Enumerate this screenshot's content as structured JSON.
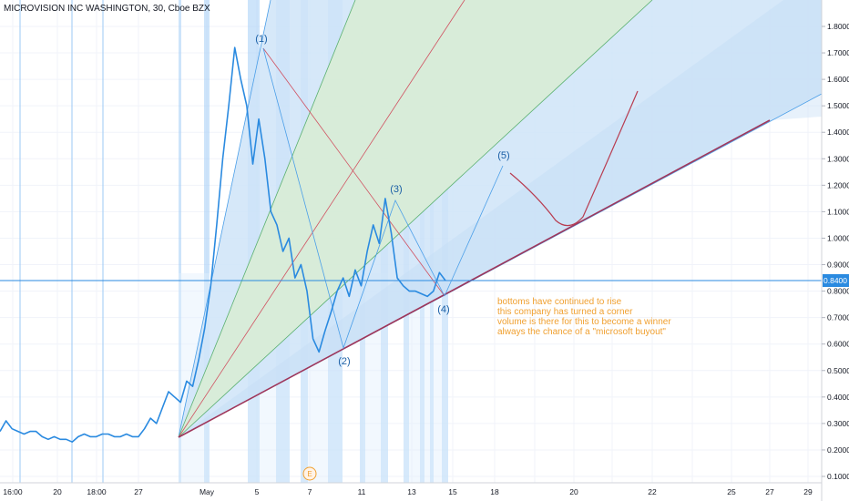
{
  "chart_data": {
    "type": "line",
    "title": "MICROVISION INC WASHINGTON, 30, Cboe BZX",
    "y_ticks": [
      "1.8000",
      "1.7000",
      "1.6000",
      "1.5000",
      "1.4000",
      "1.3000",
      "1.2000",
      "1.1000",
      "1.0000",
      "0.9000",
      "0.8000",
      "0.7000",
      "0.6000",
      "0.5000",
      "0.4000",
      "0.3000",
      "0.2000",
      "0.1000"
    ],
    "ylim": [
      0.1,
      1.8
    ],
    "x_ticks": [
      "16:00",
      "20",
      "18:00",
      "27",
      "May",
      "5",
      "7",
      "11",
      "13",
      "15",
      "18",
      "20",
      "22",
      "25",
      "27",
      "29"
    ],
    "last_price": "0.8400",
    "series": [
      {
        "values": [
          0.27,
          0.31,
          0.28,
          0.27,
          0.26,
          0.27,
          0.27,
          0.25,
          0.24,
          0.25,
          0.24,
          0.24,
          0.23,
          0.25,
          0.26,
          0.25,
          0.25,
          0.26,
          0.26,
          0.25,
          0.25,
          0.26,
          0.25,
          0.25,
          0.28,
          0.32,
          0.3,
          0.36,
          0.42,
          0.4,
          0.38,
          0.46,
          0.44,
          0.54,
          0.66,
          0.82,
          1.05,
          1.3,
          1.5,
          1.72,
          1.6,
          1.5,
          1.28,
          1.45,
          1.3,
          1.1,
          1.05,
          0.95,
          1.0,
          0.85,
          0.9,
          0.8,
          0.62,
          0.57,
          0.65,
          0.72,
          0.8,
          0.85,
          0.78,
          0.88,
          0.82,
          0.95,
          1.05,
          0.98,
          1.15,
          1.02,
          0.85,
          0.82,
          0.8,
          0.8,
          0.79,
          0.78,
          0.8,
          0.87,
          0.84
        ]
      }
    ],
    "wave_labels": [
      "(1)",
      "(2)",
      "(3)",
      "(4)",
      "(5)"
    ],
    "annotation": [
      "bottoms have continued to rise",
      "this company has turned a corner",
      "volume is there for this to become a winner",
      "always the chance of a \"microsoft buyout\""
    ],
    "colors": {
      "price": "#2a8ae0",
      "fan_blue": "#c9e1f7",
      "fan_green": "#d7ecd7",
      "band": "#9ccaf5",
      "trend": "#a0365a",
      "redline": "#d05060",
      "note": "#f0a030",
      "hline": "#2a8ae0"
    }
  }
}
